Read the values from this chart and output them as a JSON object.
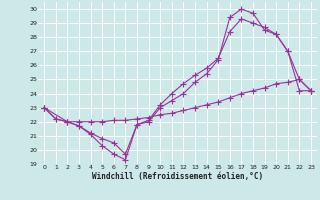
{
  "xlabel": "Windchill (Refroidissement éolien,°C)",
  "bg_color": "#cce8e8",
  "grid_color": "#ffffff",
  "line_color": "#993399",
  "xlim": [
    -0.5,
    23.5
  ],
  "ylim": [
    19,
    30.5
  ],
  "xticks": [
    0,
    1,
    2,
    3,
    4,
    5,
    6,
    7,
    8,
    9,
    10,
    11,
    12,
    13,
    14,
    15,
    16,
    17,
    18,
    19,
    20,
    21,
    22,
    23
  ],
  "yticks": [
    19,
    20,
    21,
    22,
    23,
    24,
    25,
    26,
    27,
    28,
    29,
    30
  ],
  "line1_x": [
    0,
    1,
    2,
    3,
    4,
    5,
    6,
    7,
    8,
    9,
    10,
    11,
    12,
    13,
    14,
    15,
    16,
    17,
    18,
    19,
    20,
    21,
    22,
    23
  ],
  "line1_y": [
    23.0,
    22.2,
    22.0,
    21.7,
    21.1,
    20.3,
    19.7,
    19.3,
    21.8,
    22.0,
    23.0,
    23.5,
    24.0,
    24.8,
    25.4,
    26.4,
    29.4,
    30.0,
    29.7,
    28.5,
    28.2,
    27.0,
    24.2,
    24.2
  ],
  "line2_x": [
    0,
    1,
    2,
    3,
    4,
    5,
    6,
    7,
    8,
    9,
    10,
    11,
    12,
    13,
    14,
    15,
    16,
    17,
    18,
    19,
    20,
    21,
    22,
    23
  ],
  "line2_y": [
    23.0,
    22.2,
    22.0,
    22.0,
    22.0,
    22.0,
    22.1,
    22.1,
    22.2,
    22.3,
    22.5,
    22.6,
    22.8,
    23.0,
    23.2,
    23.4,
    23.7,
    24.0,
    24.2,
    24.4,
    24.7,
    24.8,
    25.0,
    24.2
  ],
  "line3_x": [
    0,
    2,
    3,
    4,
    5,
    6,
    7,
    8,
    9,
    10,
    11,
    12,
    13,
    14,
    15,
    16,
    17,
    18,
    19,
    20,
    21,
    22,
    23
  ],
  "line3_y": [
    23.0,
    22.0,
    21.7,
    21.2,
    20.8,
    20.5,
    19.7,
    21.8,
    22.1,
    23.2,
    24.0,
    24.7,
    25.3,
    25.8,
    26.5,
    28.4,
    29.3,
    29.0,
    28.7,
    28.2,
    27.0,
    25.0,
    24.2
  ]
}
